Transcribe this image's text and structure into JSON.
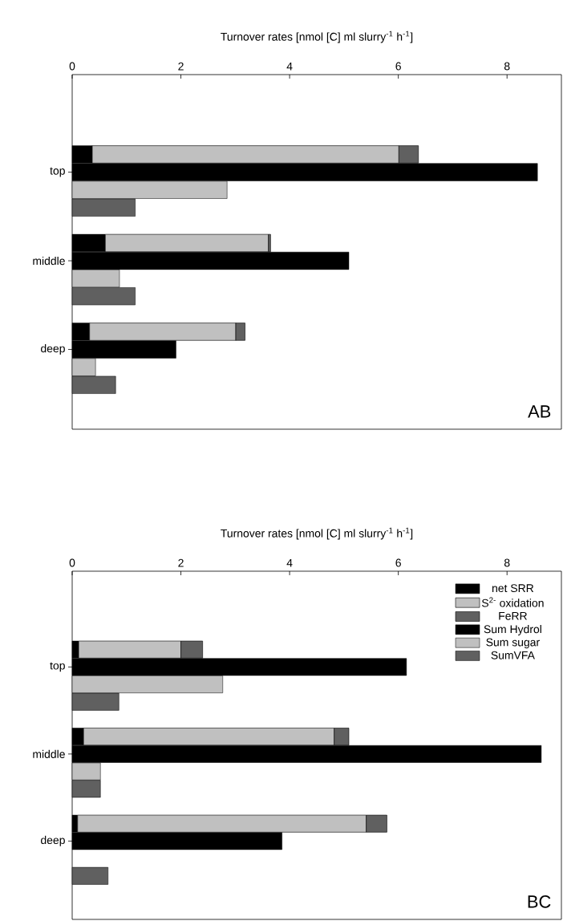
{
  "chart_data": [
    {
      "type": "bar",
      "orientation": "horizontal",
      "stacked": true,
      "xlabel": "Turnover rates [nmol [C] ml slurry$^{-1}$ h$^{-1}$]",
      "xlim": [
        0,
        9
      ],
      "xticks": [
        {
          "value": 0,
          "label": "0"
        },
        {
          "value": 2,
          "label": "2"
        },
        {
          "value": 4,
          "label": "4"
        },
        {
          "value": 6,
          "label": "6"
        },
        {
          "value": 8,
          "label": "8"
        }
      ],
      "categories": [
        null,
        null,
        null,
        null,
        null,
        "top",
        null,
        null,
        null,
        null,
        "middle",
        null,
        null,
        null,
        null,
        "deep",
        null,
        null,
        null,
        null
      ],
      "series": [
        {
          "color": "#000000",
          "values": [
            null,
            null,
            null,
            null,
            0.37,
            null,
            null,
            null,
            null,
            0.61,
            null,
            null,
            null,
            null,
            0.32,
            null,
            null,
            null,
            null,
            null
          ]
        },
        {
          "color": "#c0c0c0",
          "values": [
            null,
            null,
            null,
            null,
            5.64,
            null,
            null,
            null,
            null,
            3.0,
            null,
            null,
            null,
            null,
            2.69,
            null,
            null,
            null,
            null,
            null
          ]
        },
        {
          "color": "#606060",
          "values": [
            null,
            null,
            null,
            null,
            0.36,
            null,
            null,
            null,
            null,
            0.04,
            null,
            null,
            null,
            null,
            0.17,
            null,
            null,
            null,
            null,
            null
          ]
        },
        {
          "color": "#000000",
          "values": [
            null,
            null,
            null,
            null,
            null,
            8.56,
            null,
            null,
            null,
            null,
            5.09,
            null,
            null,
            null,
            null,
            1.91,
            null,
            null,
            null,
            null
          ]
        },
        {
          "color": "#c0c0c0",
          "values": [
            null,
            null,
            null,
            null,
            null,
            null,
            2.85,
            null,
            null,
            null,
            null,
            0.87,
            null,
            null,
            null,
            null,
            0.43,
            null,
            null,
            null
          ]
        },
        {
          "color": "#606060",
          "values": [
            null,
            null,
            null,
            null,
            null,
            null,
            null,
            1.16,
            null,
            null,
            null,
            null,
            1.16,
            null,
            null,
            null,
            null,
            0.8,
            null,
            null
          ]
        }
      ],
      "annotations": [
        "AB"
      ]
    },
    {
      "type": "bar",
      "orientation": "horizontal",
      "stacked": true,
      "xlabel": "Turnover rates [nmol [C] ml slurry$^{-1}$ h$^{-1}$]",
      "xlim": [
        0,
        9
      ],
      "xticks": [
        {
          "value": 0,
          "label": "0"
        },
        {
          "value": 2,
          "label": "2"
        },
        {
          "value": 4,
          "label": "4"
        },
        {
          "value": 6,
          "label": "6"
        },
        {
          "value": 8,
          "label": "8"
        }
      ],
      "legend": "top right",
      "categories": [
        null,
        null,
        null,
        null,
        null,
        "top",
        null,
        null,
        null,
        null,
        "middle",
        null,
        null,
        null,
        null,
        "deep",
        null,
        null,
        null,
        null
      ],
      "series": [
        {
          "name": "net SRR",
          "color": "#000000",
          "values": [
            null,
            null,
            null,
            null,
            0.12,
            null,
            null,
            null,
            null,
            0.21,
            null,
            null,
            null,
            null,
            0.1,
            null,
            null,
            null,
            null,
            null
          ]
        },
        {
          "name": "S$^{2-}$ oxidation",
          "color": "#c0c0c0",
          "values": [
            null,
            null,
            null,
            null,
            1.88,
            null,
            null,
            null,
            null,
            4.61,
            null,
            null,
            null,
            null,
            5.31,
            null,
            null,
            null,
            null,
            null
          ]
        },
        {
          "name": "FeRR",
          "color": "#606060",
          "values": [
            null,
            null,
            null,
            null,
            0.4,
            null,
            null,
            null,
            null,
            0.27,
            null,
            null,
            null,
            null,
            0.38,
            null,
            null,
            null,
            null,
            null
          ]
        },
        {
          "name": "Sum Hydrol",
          "color": "#000000",
          "values": [
            null,
            null,
            null,
            null,
            null,
            6.15,
            null,
            null,
            null,
            null,
            8.63,
            null,
            null,
            null,
            null,
            3.86,
            null,
            null,
            null,
            null
          ]
        },
        {
          "name": "Sum sugar",
          "color": "#c0c0c0",
          "values": [
            null,
            null,
            null,
            null,
            null,
            null,
            2.77,
            null,
            null,
            null,
            null,
            0.52,
            null,
            null,
            null,
            null,
            null,
            null,
            null,
            null
          ]
        },
        {
          "name": "SumVFA",
          "color": "#606060",
          "values": [
            null,
            null,
            null,
            null,
            null,
            null,
            null,
            0.86,
            null,
            null,
            null,
            null,
            0.52,
            null,
            null,
            null,
            null,
            0.66,
            null,
            null
          ]
        }
      ],
      "annotations": [
        "BC"
      ]
    }
  ]
}
